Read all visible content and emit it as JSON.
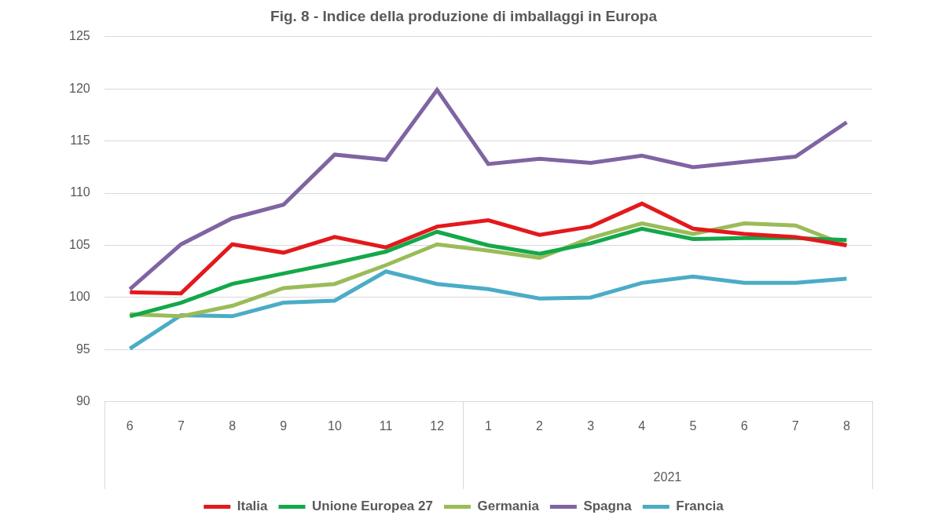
{
  "chart_data": {
    "type": "line",
    "title": "Fig. 8 - Indice della produzione di imballaggi in Europa",
    "categories": [
      "6",
      "7",
      "8",
      "9",
      "10",
      "11",
      "12",
      "1",
      "2",
      "3",
      "4",
      "5",
      "6",
      "7",
      "8"
    ],
    "x_groups": [
      null,
      "2021"
    ],
    "series": [
      {
        "name": "Italia",
        "color": "#e3191c",
        "values": [
          100.5,
          100.4,
          105.1,
          104.3,
          105.8,
          104.8,
          106.8,
          107.4,
          106.0,
          106.8,
          109.0,
          106.6,
          106.1,
          105.8,
          105.0
        ]
      },
      {
        "name": "Unione Europea 27",
        "color": "#13a84a",
        "values": [
          98.2,
          99.5,
          101.3,
          102.3,
          103.3,
          104.4,
          106.3,
          105.0,
          104.2,
          105.2,
          106.6,
          105.6,
          105.7,
          105.7,
          105.5
        ]
      },
      {
        "name": "Germania",
        "color": "#9bbb59",
        "values": [
          98.4,
          98.2,
          99.2,
          100.9,
          101.3,
          103.1,
          105.1,
          104.5,
          103.8,
          105.7,
          107.1,
          106.1,
          107.1,
          106.9,
          105.0
        ]
      },
      {
        "name": "Spagna",
        "color": "#8064a2",
        "values": [
          100.8,
          105.1,
          107.6,
          108.9,
          113.7,
          113.2,
          119.9,
          112.8,
          113.3,
          112.9,
          113.6,
          112.5,
          113.0,
          113.5,
          116.8
        ]
      },
      {
        "name": "Francia",
        "color": "#4bacc6",
        "values": [
          95.1,
          98.3,
          98.2,
          99.5,
          99.7,
          102.5,
          101.3,
          100.8,
          99.9,
          100.0,
          101.4,
          102.0,
          101.4,
          101.4,
          101.8
        ]
      }
    ],
    "ylim": [
      90,
      125
    ],
    "yticks": [
      90,
      95,
      100,
      105,
      110,
      115,
      120,
      125
    ],
    "grid": true,
    "legend": "bottom"
  }
}
